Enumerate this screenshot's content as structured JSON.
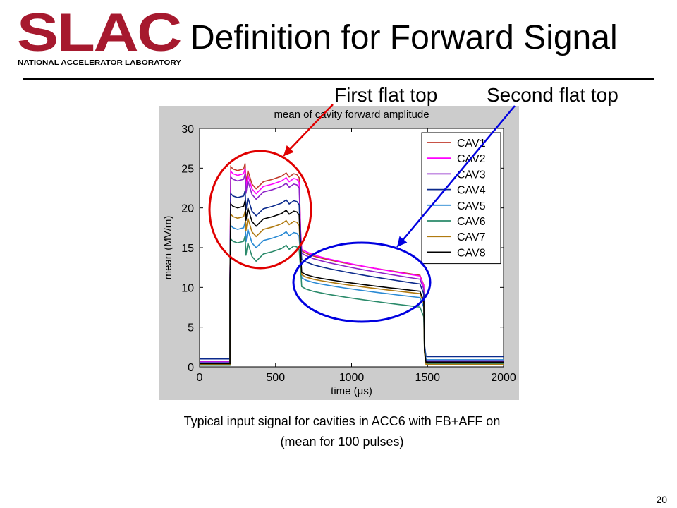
{
  "slide": {
    "title": "Definition for Forward Signal",
    "callout_first": "First flat top",
    "callout_second": "Second flat top",
    "caption_line1": "Typical input signal for cavities in ACC6 with FB+AFF on",
    "caption_line2": "(mean for 100 pulses)",
    "page_number": "20"
  },
  "logo": {
    "word": "SLAC",
    "tagline": "NATIONAL ACCELERATOR LABORATORY",
    "color": "#a6192e"
  },
  "annotations": {
    "first_color": "#e00000",
    "second_color": "#0000e0"
  },
  "chart_data": {
    "type": "line",
    "title": "mean of cavity forward amplitude",
    "xlabel": "time (μs)",
    "ylabel": "mean (MV/m)",
    "xlim": [
      0,
      2000
    ],
    "ylim": [
      0,
      30
    ],
    "xticks": [
      0,
      500,
      1000,
      1500,
      2000
    ],
    "yticks": [
      0,
      5,
      10,
      15,
      20,
      25,
      30
    ],
    "grid": false,
    "legend_position": "top-right",
    "series": [
      {
        "name": "CAV1",
        "color": "#c0392b",
        "base": 0.5,
        "ft1": 24.6,
        "ft2": [
          14.3,
          11.5
        ],
        "tail": 0.5
      },
      {
        "name": "CAV2",
        "color": "#ff00ff",
        "base": 0.7,
        "ft1": 24.0,
        "ft2": [
          14.5,
          11.4
        ],
        "tail": 0.8
      },
      {
        "name": "CAV3",
        "color": "#8e24c8",
        "base": 0.6,
        "ft1": 23.3,
        "ft2": [
          14.0,
          11.0
        ],
        "tail": 0.7
      },
      {
        "name": "CAV4",
        "color": "#0b2a8c",
        "base": 1.0,
        "ft1": 21.2,
        "ft2": [
          13.2,
          10.4
        ],
        "tail": 1.3
      },
      {
        "name": "CAV5",
        "color": "#2a8ad4",
        "base": 0.5,
        "ft1": 17.2,
        "ft2": [
          10.9,
          8.7
        ],
        "tail": 0.9
      },
      {
        "name": "CAV6",
        "color": "#2a8a6a",
        "base": 0.2,
        "ft1": 15.5,
        "ft2": [
          9.8,
          7.5
        ],
        "tail": 0.4
      },
      {
        "name": "CAV7",
        "color": "#b07a10",
        "base": 0.3,
        "ft1": 18.6,
        "ft2": [
          11.3,
          9.2
        ],
        "tail": 0.3
      },
      {
        "name": "CAV8",
        "color": "#000000",
        "base": 0.4,
        "ft1": 19.9,
        "ft2": [
          11.6,
          9.5
        ],
        "tail": 0.6
      }
    ]
  }
}
